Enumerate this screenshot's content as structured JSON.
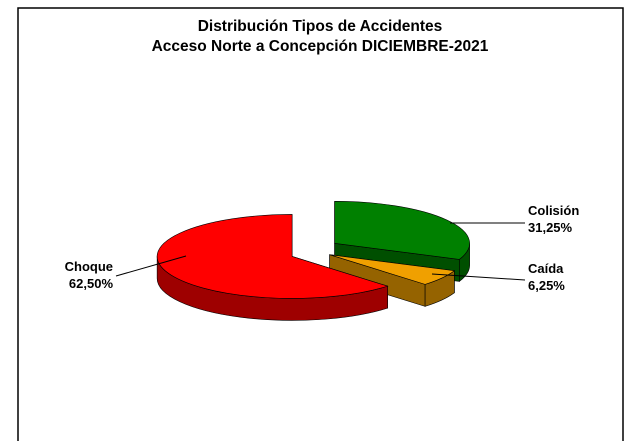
{
  "chart_data": {
    "type": "pie3d",
    "title": "Distribución Tipos de Accidentes",
    "subtitle": "Acceso Norte a Concepción DICIEMBRE-2021",
    "series": [
      {
        "name": "Choque",
        "color": "#ff0000",
        "value": 62.5,
        "value_label": "62,50%"
      },
      {
        "name": "Colisión",
        "color": "#008000",
        "value": 31.25,
        "value_label": "31,25%"
      },
      {
        "name": "Caída",
        "color": "#f0a000",
        "value": 6.25,
        "value_label": "6,25%"
      }
    ]
  }
}
